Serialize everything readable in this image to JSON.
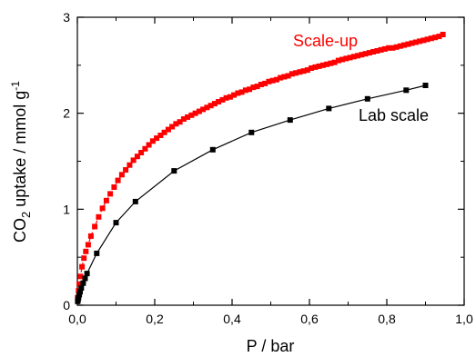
{
  "chart_data": {
    "type": "scatter",
    "title": "",
    "xlabel": "P / bar",
    "ylabel": {
      "prefix": "CO",
      "subscript": "2",
      "middle": " uptake / mmol g",
      "superscript": "-1"
    },
    "xlim": [
      0,
      1.0
    ],
    "ylim": [
      0,
      3
    ],
    "xticks": [
      "0,0",
      "0,2",
      "0,4",
      "0,6",
      "0,8",
      "1,0"
    ],
    "xtick_values": [
      0,
      0.2,
      0.4,
      0.6,
      0.8,
      1.0
    ],
    "yticks": [
      "0",
      "1",
      "2",
      "3"
    ],
    "ytick_values": [
      0,
      1,
      2,
      3
    ],
    "grid": false,
    "legend": "inline labels",
    "series": [
      {
        "name": "Scale-up",
        "color": "#ff0000",
        "marker": "square",
        "line": "dashed",
        "x": [
          0.001,
          0.003,
          0.005,
          0.008,
          0.012,
          0.017,
          0.022,
          0.028,
          0.035,
          0.045,
          0.055,
          0.065,
          0.075,
          0.085,
          0.095,
          0.105,
          0.115,
          0.125,
          0.135,
          0.145,
          0.155,
          0.165,
          0.175,
          0.185,
          0.195,
          0.205,
          0.215,
          0.225,
          0.235,
          0.245,
          0.255,
          0.265,
          0.275,
          0.285,
          0.295,
          0.305,
          0.315,
          0.325,
          0.335,
          0.345,
          0.355,
          0.365,
          0.375,
          0.385,
          0.395,
          0.405,
          0.415,
          0.425,
          0.435,
          0.445,
          0.455,
          0.465,
          0.475,
          0.485,
          0.495,
          0.505,
          0.515,
          0.525,
          0.535,
          0.545,
          0.555,
          0.565,
          0.575,
          0.585,
          0.595,
          0.605,
          0.615,
          0.625,
          0.635,
          0.645,
          0.655,
          0.665,
          0.675,
          0.685,
          0.695,
          0.705,
          0.715,
          0.725,
          0.735,
          0.745,
          0.755,
          0.765,
          0.775,
          0.785,
          0.795,
          0.805,
          0.815,
          0.825,
          0.835,
          0.845,
          0.855,
          0.865,
          0.875,
          0.885,
          0.895,
          0.905,
          0.915,
          0.925,
          0.935,
          0.945
        ],
        "values": [
          0.08,
          0.15,
          0.22,
          0.3,
          0.4,
          0.49,
          0.56,
          0.63,
          0.72,
          0.82,
          0.92,
          1.01,
          1.09,
          1.16,
          1.23,
          1.3,
          1.36,
          1.41,
          1.46,
          1.51,
          1.55,
          1.59,
          1.63,
          1.67,
          1.71,
          1.74,
          1.77,
          1.8,
          1.83,
          1.86,
          1.89,
          1.91,
          1.94,
          1.96,
          1.98,
          2.0,
          2.02,
          2.04,
          2.06,
          2.08,
          2.1,
          2.12,
          2.14,
          2.16,
          2.17,
          2.19,
          2.21,
          2.22,
          2.24,
          2.25,
          2.27,
          2.28,
          2.3,
          2.31,
          2.33,
          2.34,
          2.35,
          2.37,
          2.38,
          2.39,
          2.41,
          2.42,
          2.43,
          2.44,
          2.45,
          2.47,
          2.48,
          2.49,
          2.5,
          2.51,
          2.52,
          2.53,
          2.55,
          2.56,
          2.57,
          2.58,
          2.59,
          2.6,
          2.61,
          2.62,
          2.63,
          2.64,
          2.65,
          2.66,
          2.67,
          2.68,
          2.68,
          2.69,
          2.7,
          2.71,
          2.72,
          2.73,
          2.74,
          2.75,
          2.76,
          2.77,
          2.78,
          2.79,
          2.8,
          2.82
        ]
      },
      {
        "name": "Lab scale",
        "color": "#000000",
        "marker": "square",
        "line": "solid",
        "x": [
          0.001,
          0.002,
          0.003,
          0.005,
          0.007,
          0.01,
          0.015,
          0.02,
          0.025,
          0.05,
          0.1,
          0.15,
          0.25,
          0.35,
          0.45,
          0.55,
          0.65,
          0.75,
          0.85,
          0.9
        ],
        "values": [
          0.04,
          0.06,
          0.08,
          0.11,
          0.14,
          0.18,
          0.23,
          0.28,
          0.33,
          0.54,
          0.86,
          1.08,
          1.4,
          1.62,
          1.8,
          1.93,
          2.05,
          2.15,
          2.24,
          2.29
        ]
      }
    ]
  }
}
